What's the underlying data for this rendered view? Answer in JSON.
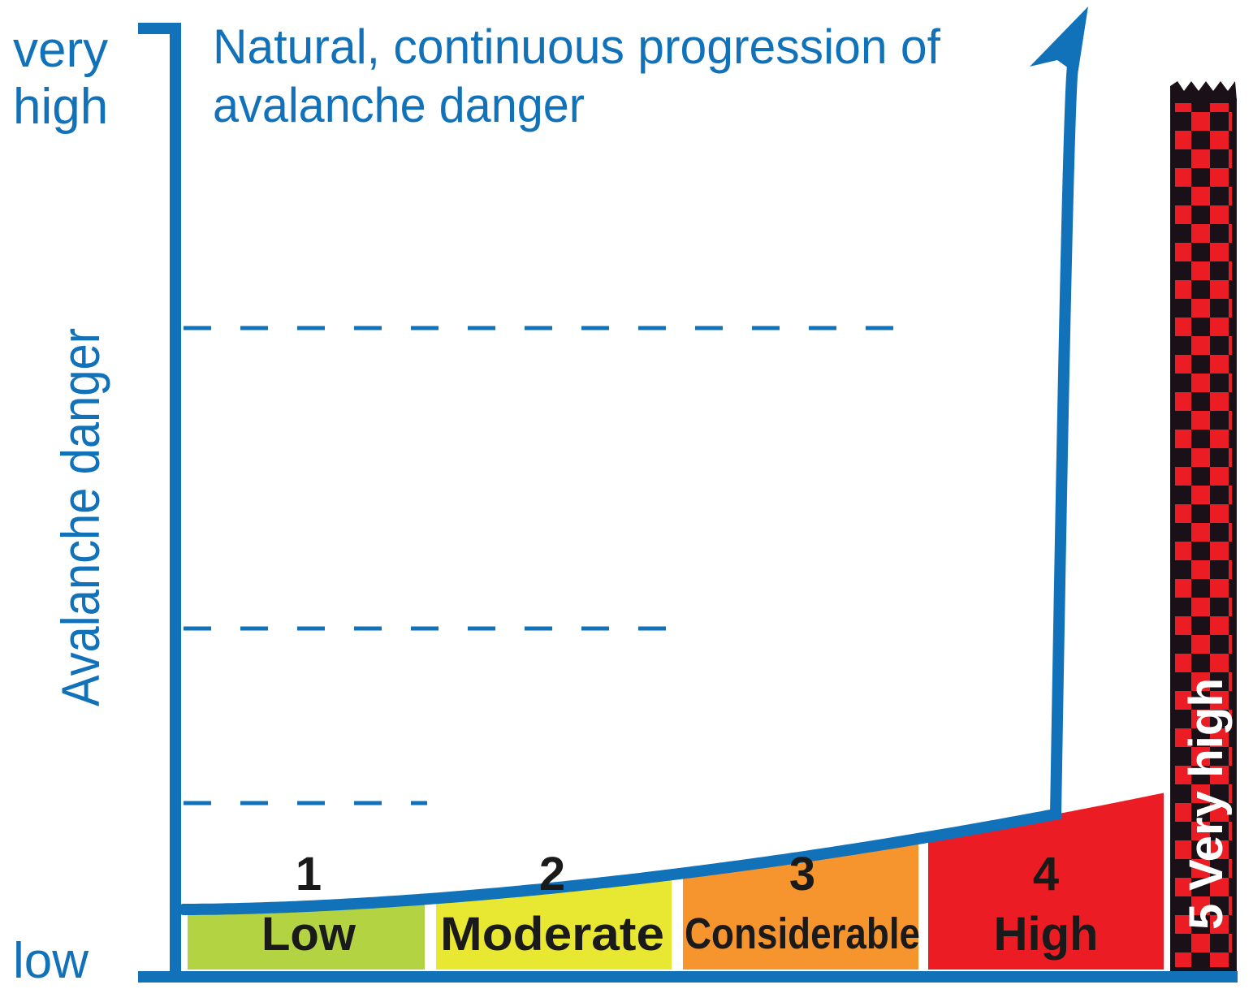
{
  "title": {
    "line1": "Natural, continuous progression of",
    "line2": "avalanche danger"
  },
  "y_axis": {
    "label": "Avalanche danger",
    "top_label_line1": "very",
    "top_label_line2": "high",
    "bottom_label": "low"
  },
  "levels": [
    {
      "number": "1",
      "name": "Low",
      "color": "#b3d343"
    },
    {
      "number": "2",
      "name": "Moderate",
      "color": "#e8e833"
    },
    {
      "number": "3",
      "name": "Considerable",
      "color": "#f6942e"
    },
    {
      "number": "4",
      "name": "High",
      "color": "#ec1c24"
    },
    {
      "number": "5",
      "name": "Very high",
      "color": "#ec1c24",
      "pattern": "checkered red and black"
    }
  ],
  "colors": {
    "axis_blue": "#1272b9",
    "text_dark": "#1a1a1a",
    "checker_dark": "#1a1018"
  }
}
